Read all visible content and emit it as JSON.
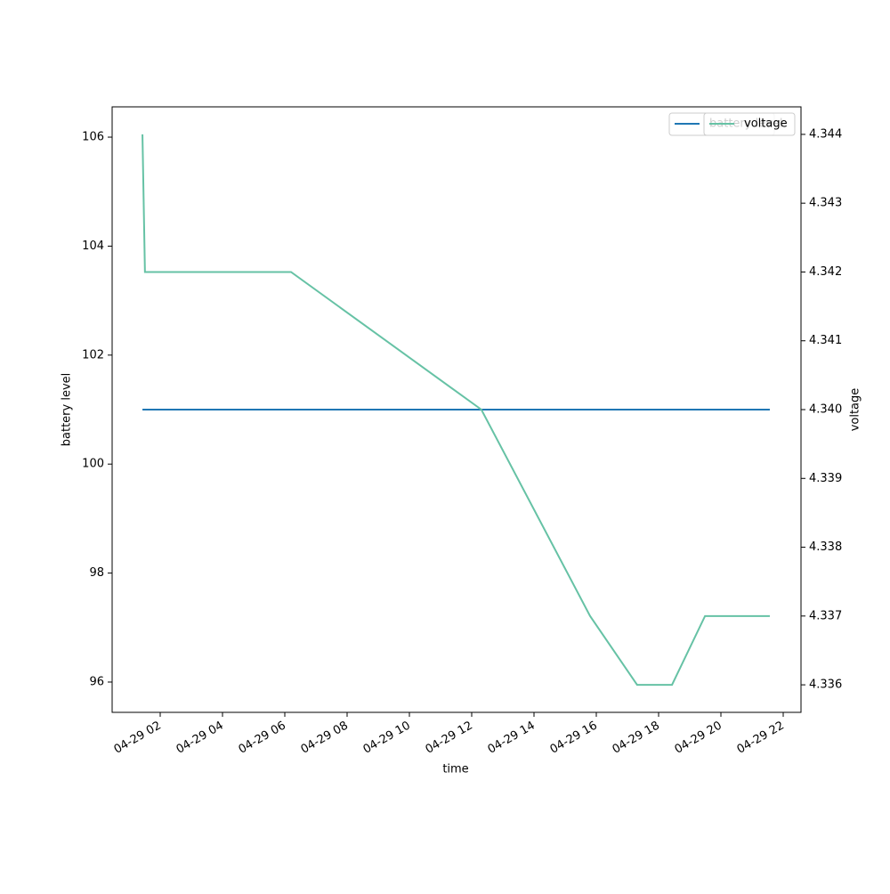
{
  "chart_data": {
    "type": "line",
    "x_label": "time",
    "y_label": "battery level",
    "y2_label": "voltage",
    "x": [
      1.43,
      1.51,
      6.2,
      12.31,
      15.8,
      17.31,
      18.43,
      19.49,
      21.57
    ],
    "xlim": [
      0.457,
      22.571
    ],
    "xticks": [
      {
        "value": 2,
        "label": "04-29 02"
      },
      {
        "value": 4,
        "label": "04-29 04"
      },
      {
        "value": 6,
        "label": "04-29 06"
      },
      {
        "value": 8,
        "label": "04-29 08"
      },
      {
        "value": 10,
        "label": "04-29 10"
      },
      {
        "value": 12,
        "label": "04-29 12"
      },
      {
        "value": 14,
        "label": "04-29 14"
      },
      {
        "value": 16,
        "label": "04-29 16"
      },
      {
        "value": 18,
        "label": "04-29 18"
      },
      {
        "value": 20,
        "label": "04-29 20"
      },
      {
        "value": 22,
        "label": "04-29 22"
      }
    ],
    "ylim": [
      95.444,
      106.556
    ],
    "yticks": [
      96,
      98,
      100,
      102,
      104,
      106
    ],
    "y2lim": [
      4.3356,
      4.3444
    ],
    "y2ticks": [
      4.336,
      4.337,
      4.338,
      4.339,
      {
        "value": 4.34,
        "label": "4.340"
      },
      4.341,
      4.342,
      4.343,
      4.344
    ],
    "series": [
      {
        "name": "battery level",
        "color": "#1f77b4",
        "axis": "y",
        "values": [
          101,
          101,
          101,
          101,
          101,
          101,
          101,
          101,
          101
        ]
      },
      {
        "name": "voltage",
        "color": "#66c2a5",
        "axis": "y2",
        "values": [
          4.344,
          4.342,
          4.342,
          4.34,
          4.337,
          4.336,
          4.336,
          4.337,
          4.337
        ]
      }
    ]
  }
}
